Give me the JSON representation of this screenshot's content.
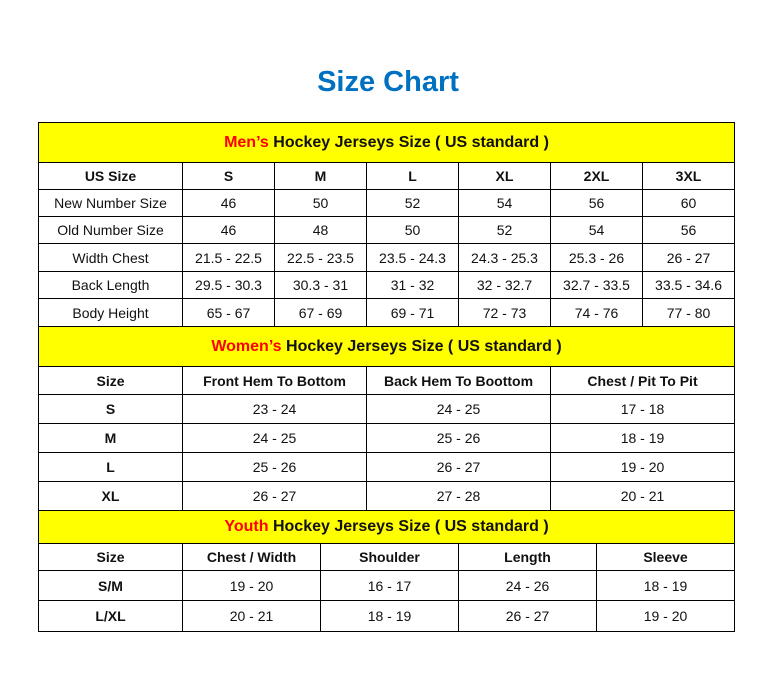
{
  "title": "Size Chart",
  "colors": {
    "title": "#0070C0",
    "header_bg": "#FFFF00",
    "highlight": "#FF0000"
  },
  "sections": [
    {
      "highlight": "Men’s",
      "rest": " Hockey Jerseys Size ( US standard )",
      "columns": [
        "US Size",
        "S",
        "M",
        "L",
        "XL",
        "2XL",
        "3XL"
      ],
      "rows": [
        [
          "New Number Size",
          "46",
          "50",
          "52",
          "54",
          "56",
          "60"
        ],
        [
          "Old Number Size",
          "46",
          "48",
          "50",
          "52",
          "54",
          "56"
        ],
        [
          "Width Chest",
          "21.5 - 22.5",
          "22.5 - 23.5",
          "23.5 - 24.3",
          "24.3 - 25.3",
          "25.3 - 26",
          "26 - 27"
        ],
        [
          "Back Length",
          "29.5 - 30.3",
          "30.3 - 31",
          "31 - 32",
          "32 - 32.7",
          "32.7 - 33.5",
          "33.5 - 34.6"
        ],
        [
          "Body Height",
          "65 - 67",
          "67 - 69",
          "69 - 71",
          "72 - 73",
          "74 - 76",
          "77 - 80"
        ]
      ]
    },
    {
      "highlight": "Women’s",
      "rest": " Hockey Jerseys Size ( US standard )",
      "columns": [
        "Size",
        "Front Hem To Bottom",
        "Back Hem To Boottom",
        "Chest / Pit To Pit"
      ],
      "rows": [
        [
          "S",
          "23 - 24",
          "24 - 25",
          "17 - 18"
        ],
        [
          "M",
          "24 - 25",
          "25 - 26",
          "18 - 19"
        ],
        [
          "L",
          "25 - 26",
          "26 - 27",
          "19 - 20"
        ],
        [
          "XL",
          "26 - 27",
          "27 - 28",
          "20 - 21"
        ]
      ]
    },
    {
      "highlight": "Youth",
      "rest": " Hockey Jerseys Size ( US standard )",
      "columns": [
        "Size",
        "Chest / Width",
        "Shoulder",
        "Length",
        "Sleeve"
      ],
      "rows": [
        [
          "S/M",
          "19 - 20",
          "16 - 17",
          "24 - 26",
          "18 - 19"
        ],
        [
          "L/XL",
          "20 - 21",
          "18 - 19",
          "26 - 27",
          "19 - 20"
        ]
      ]
    }
  ]
}
